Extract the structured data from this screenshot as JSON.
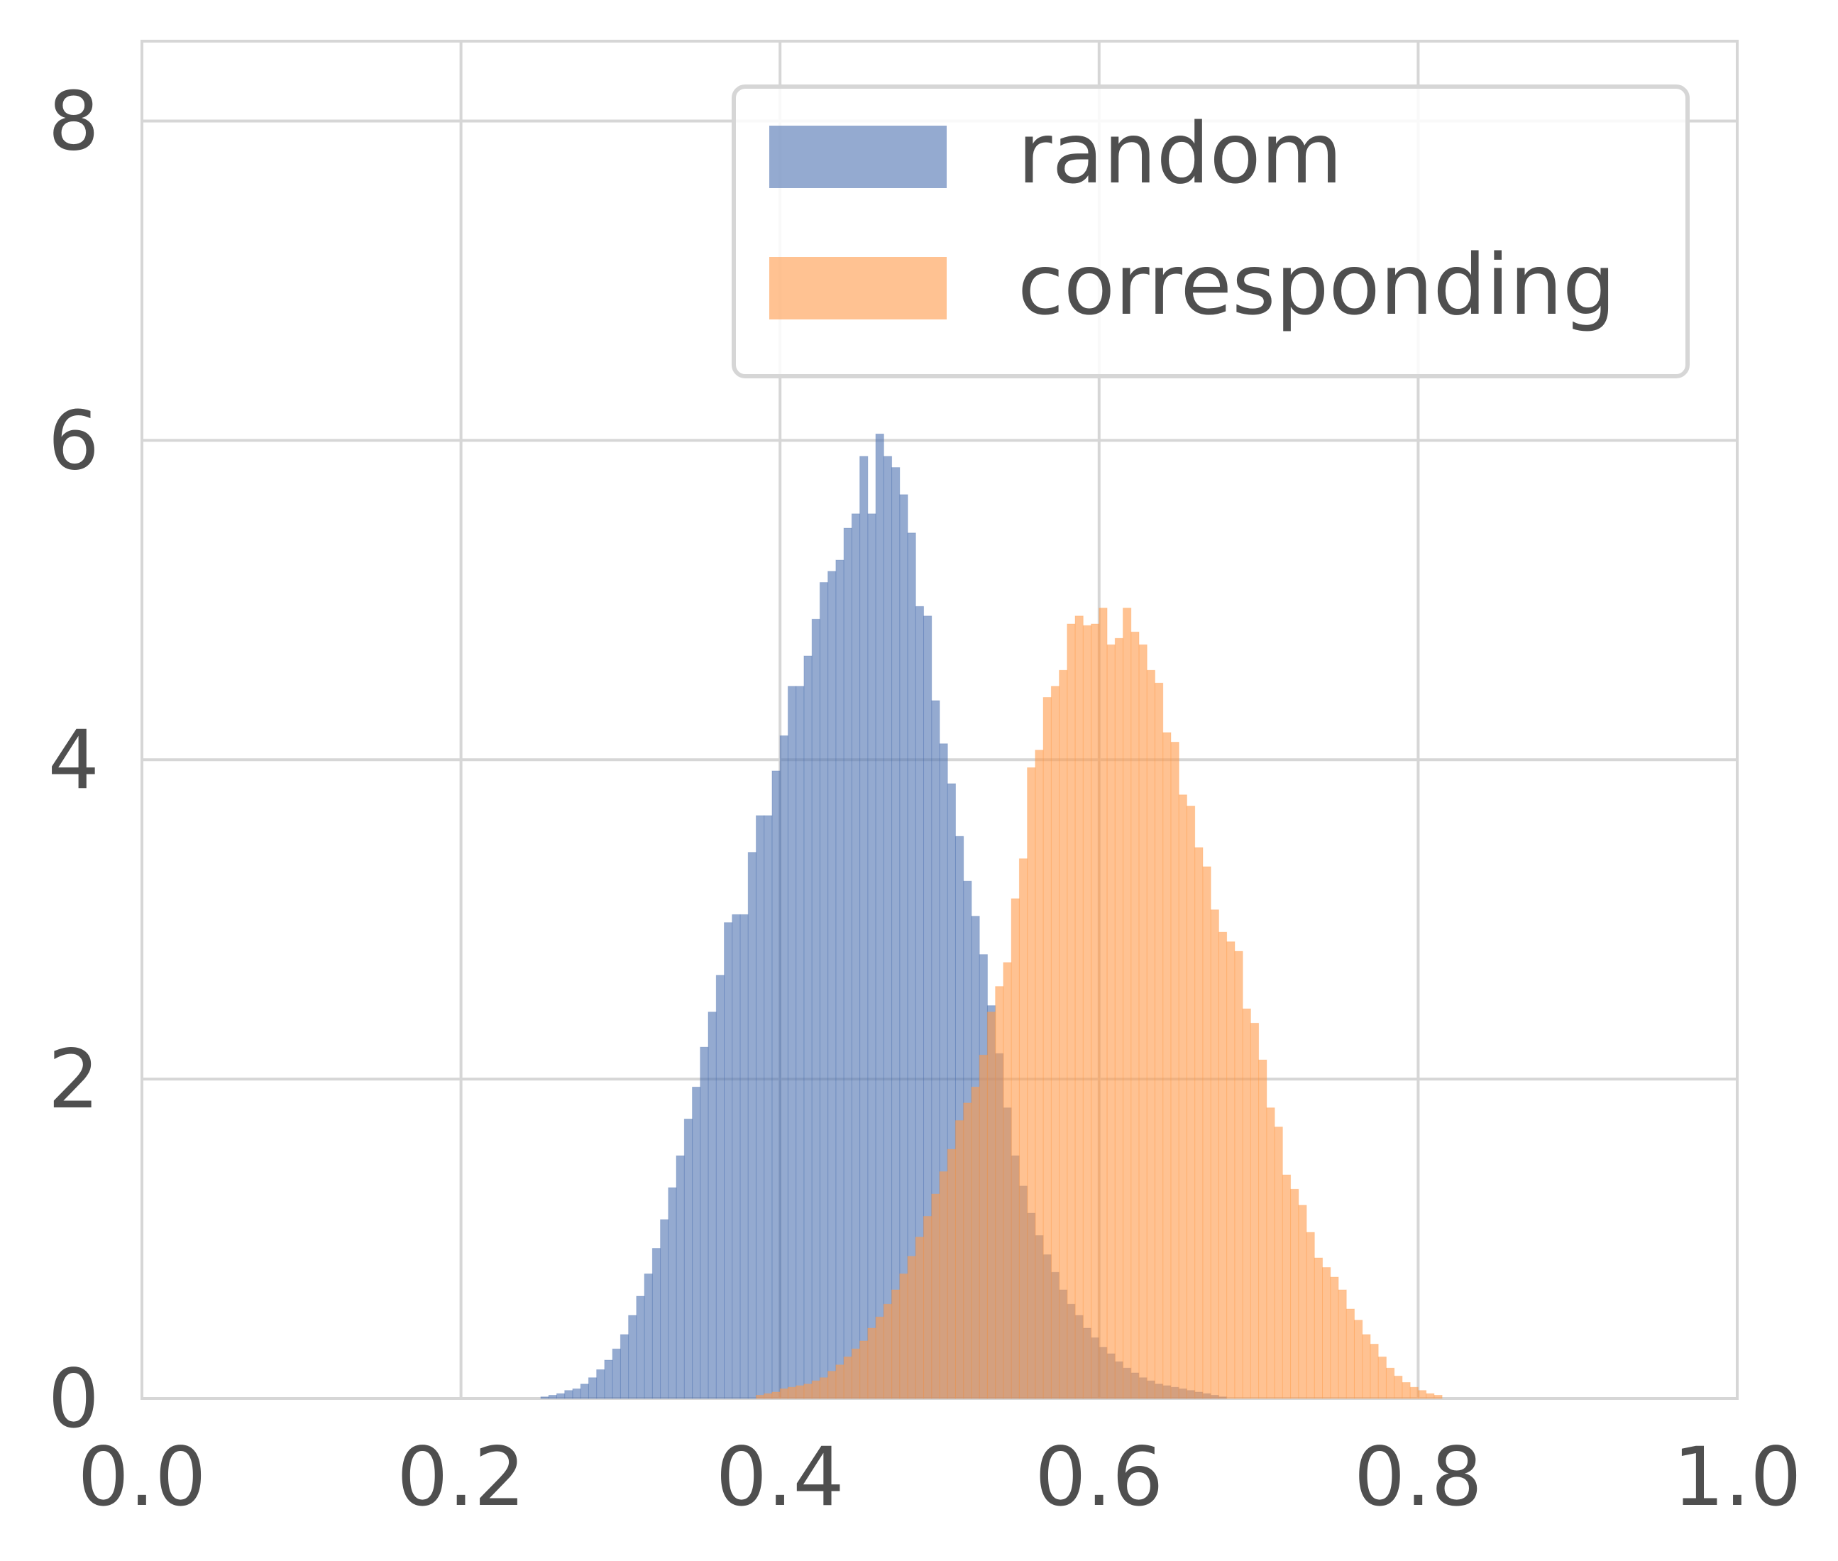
{
  "chart_data": {
    "type": "bar",
    "subtype": "overlapping-histogram",
    "title": "",
    "xlabel": "",
    "ylabel": "",
    "xlim": [
      0.0,
      1.0
    ],
    "ylim": [
      0,
      8.5
    ],
    "xticks": [
      0.0,
      0.2,
      0.4,
      0.6,
      0.8,
      1.0
    ],
    "xtick_labels": [
      "0.0",
      "0.2",
      "0.4",
      "0.6",
      "0.8",
      "1.0"
    ],
    "yticks": [
      0,
      2,
      4,
      6,
      8
    ],
    "ytick_labels": [
      "0",
      "2",
      "4",
      "6",
      "8"
    ],
    "grid": true,
    "legend_position": "top-right",
    "bin_width": 0.005,
    "series": [
      {
        "name": "random",
        "color": "#4c72b0",
        "opacity": 0.6,
        "bin_start": 0.25,
        "values": [
          0.01,
          0.02,
          0.03,
          0.05,
          0.06,
          0.09,
          0.13,
          0.18,
          0.24,
          0.31,
          0.4,
          0.52,
          0.64,
          0.78,
          0.94,
          1.12,
          1.32,
          1.52,
          1.75,
          1.95,
          2.2,
          2.42,
          2.65,
          2.98,
          3.03,
          3.03,
          3.42,
          3.65,
          3.65,
          3.93,
          4.15,
          4.46,
          4.46,
          4.65,
          4.88,
          5.11,
          5.18,
          5.25,
          5.45,
          5.54,
          5.9,
          5.54,
          6.04,
          5.9,
          5.83,
          5.66,
          5.42,
          4.96,
          4.9,
          4.37,
          4.1,
          3.85,
          3.52,
          3.24,
          3.02,
          2.78,
          2.46,
          2.16,
          1.82,
          1.52,
          1.33,
          1.16,
          1.02,
          0.9,
          0.79,
          0.68,
          0.59,
          0.52,
          0.44,
          0.38,
          0.32,
          0.28,
          0.23,
          0.19,
          0.16,
          0.13,
          0.11,
          0.09,
          0.08,
          0.07,
          0.06,
          0.05,
          0.04,
          0.03,
          0.02,
          0.01
        ]
      },
      {
        "name": "corresponding",
        "color": "#ff9a4a",
        "opacity": 0.6,
        "bin_start": 0.385,
        "values": [
          0.02,
          0.03,
          0.04,
          0.06,
          0.07,
          0.08,
          0.09,
          0.11,
          0.13,
          0.17,
          0.21,
          0.26,
          0.31,
          0.36,
          0.44,
          0.51,
          0.59,
          0.68,
          0.78,
          0.89,
          1.01,
          1.14,
          1.28,
          1.42,
          1.56,
          1.74,
          1.85,
          1.95,
          2.15,
          2.42,
          2.58,
          2.73,
          3.13,
          3.38,
          3.95,
          4.06,
          4.39,
          4.46,
          4.56,
          4.85,
          4.9,
          4.84,
          4.85,
          4.95,
          4.72,
          4.76,
          4.95,
          4.8,
          4.72,
          4.56,
          4.48,
          4.17,
          4.11,
          3.78,
          3.71,
          3.45,
          3.33,
          3.06,
          2.92,
          2.86,
          2.8,
          2.44,
          2.35,
          2.12,
          1.82,
          1.7,
          1.4,
          1.31,
          1.21,
          1.04,
          0.88,
          0.82,
          0.76,
          0.68,
          0.56,
          0.49,
          0.4,
          0.34,
          0.26,
          0.19,
          0.14,
          0.1,
          0.07,
          0.05,
          0.03,
          0.02
        ]
      }
    ]
  }
}
